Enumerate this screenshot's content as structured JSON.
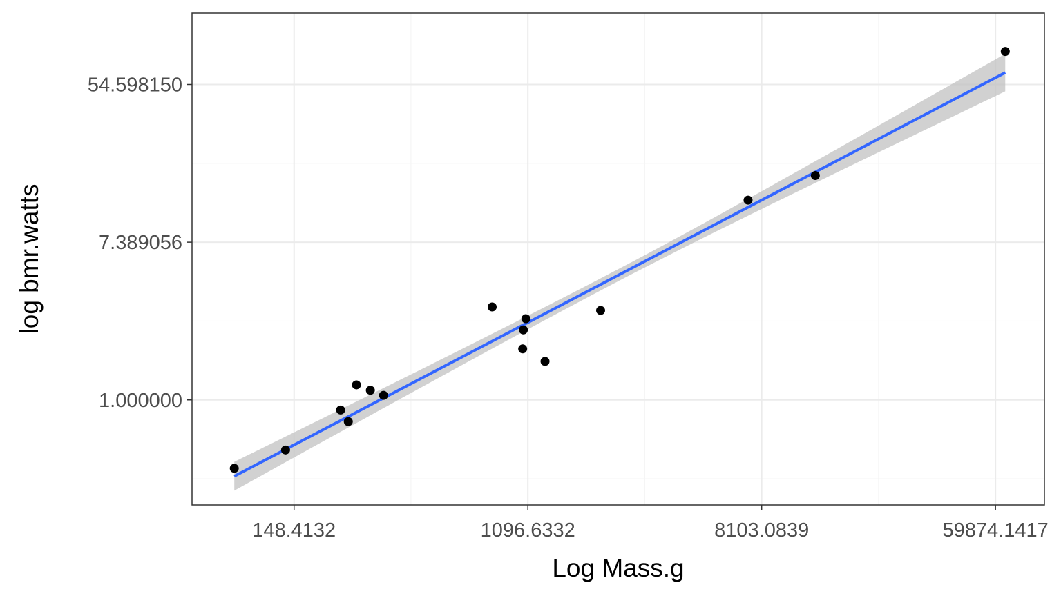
{
  "chart_data": {
    "type": "scatter",
    "title": "",
    "xlabel": "Log Mass.g",
    "ylabel": "log bmr.watts",
    "x_scale": "log",
    "y_scale": "log",
    "x_ticks": [
      {
        "value": 148.4132,
        "label": "148.4132"
      },
      {
        "value": 1096.6332,
        "label": "1096.6332"
      },
      {
        "value": 8103.0839,
        "label": "8103.0839"
      },
      {
        "value": 59874.1417,
        "label": "59874.1417"
      }
    ],
    "y_ticks": [
      {
        "value": 1.0,
        "label": "1.000000"
      },
      {
        "value": 7.389056,
        "label": "7.389056"
      },
      {
        "value": 54.59815,
        "label": "54.598150"
      }
    ],
    "xlim": [
      62,
      91000
    ],
    "ylim": [
      0.264,
      135
    ],
    "grid": true,
    "points": [
      {
        "x": 89,
        "y": 0.42
      },
      {
        "x": 138,
        "y": 0.53
      },
      {
        "x": 221,
        "y": 0.88
      },
      {
        "x": 236,
        "y": 0.76
      },
      {
        "x": 253,
        "y": 1.21
      },
      {
        "x": 285,
        "y": 1.13
      },
      {
        "x": 319,
        "y": 1.06
      },
      {
        "x": 808,
        "y": 3.25
      },
      {
        "x": 1049,
        "y": 1.91
      },
      {
        "x": 1055,
        "y": 2.43
      },
      {
        "x": 1078,
        "y": 2.8
      },
      {
        "x": 1270,
        "y": 1.63
      },
      {
        "x": 2043,
        "y": 3.11
      },
      {
        "x": 7212,
        "y": 12.6
      },
      {
        "x": 12820,
        "y": 17.2
      },
      {
        "x": 65100,
        "y": 83
      }
    ],
    "fit": {
      "method": "linear regression on log-log scale",
      "x": [
        89,
        65100
      ],
      "y": [
        0.38,
        63.5
      ],
      "band_lower": [
        0.316,
        50.0
      ],
      "band_upper": [
        0.455,
        80.5
      ]
    },
    "colors": {
      "points": "#000000",
      "fit_line": "#3366FF",
      "band": "#bfbfbf",
      "grid_major": "#ebebeb",
      "grid_minor": "#f5f5f5",
      "panel_border": "#333333"
    }
  }
}
